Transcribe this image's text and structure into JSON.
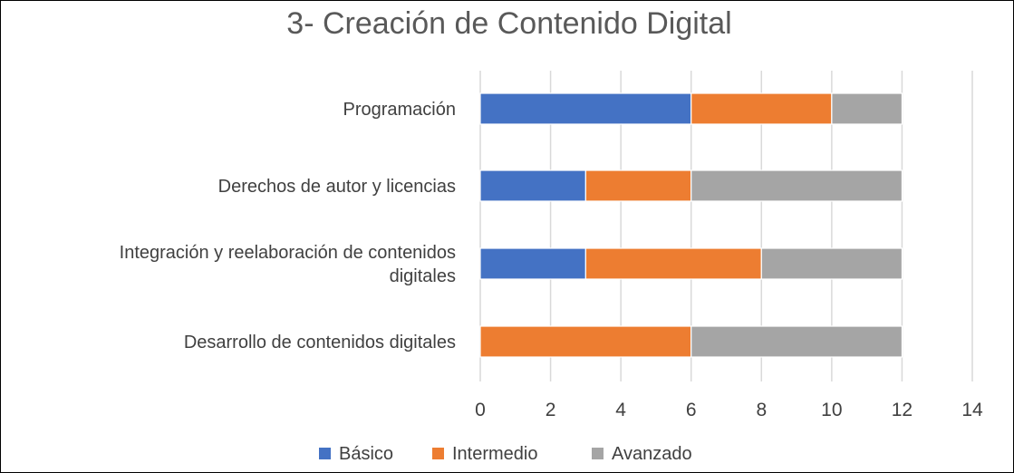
{
  "chart_data": {
    "type": "bar",
    "orientation": "horizontal",
    "stacked": true,
    "title": "3- Creación de Contenido Digital",
    "categories": [
      [
        "Programación"
      ],
      [
        "Derechos de autor y licencias"
      ],
      [
        "Integración y reelaboración de contenidos",
        "digitales"
      ],
      [
        "Desarrollo de contenidos digitales"
      ]
    ],
    "series": [
      {
        "name": "Básico",
        "color": "#4472c4",
        "values": [
          6,
          3,
          3,
          0
        ]
      },
      {
        "name": "Intermedio",
        "color": "#ed7d31",
        "values": [
          4,
          3,
          5,
          6
        ]
      },
      {
        "name": "Avanzado",
        "color": "#a5a5a5",
        "values": [
          2,
          6,
          4,
          6
        ]
      }
    ],
    "xlim": [
      0,
      14
    ],
    "xticks": [
      0,
      2,
      4,
      6,
      8,
      10,
      12,
      14
    ],
    "grid": true,
    "legend": "bottom"
  }
}
